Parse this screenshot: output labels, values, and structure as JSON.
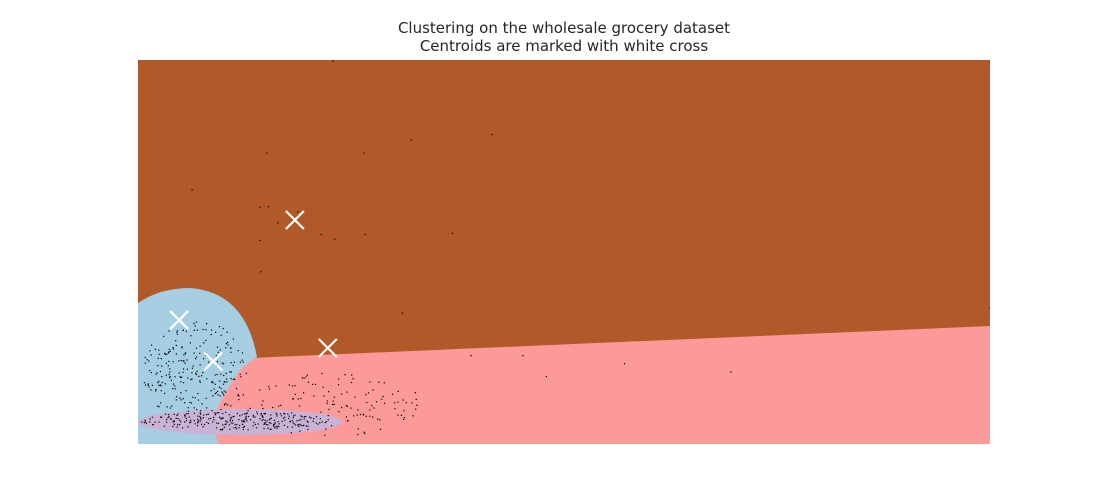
{
  "chart_data": {
    "type": "scatter",
    "title": "Clustering on the wholesale grocery dataset",
    "subtitle": "Centroids are marked with white cross",
    "xlabel": "",
    "ylabel": "",
    "xlim": [
      -0.45,
      1.0
    ],
    "ylim": [
      -0.36,
      0.3
    ],
    "grid": false,
    "axes_visible": false,
    "colors": {
      "region_brown": "#b15928",
      "region_blue": "#a6cee3",
      "region_pink": "#fb9a99",
      "region_lavender": "#cab2d6",
      "points": "#000000",
      "centroids": "#ffffff"
    },
    "centroids": [
      {
        "cluster": "brown",
        "x": -0.183,
        "y": 0.025
      },
      {
        "cluster": "blue",
        "x": -0.38,
        "y": -0.147
      },
      {
        "cluster": "pink",
        "x": -0.127,
        "y": -0.195
      },
      {
        "cluster": "lavender",
        "x": -0.322,
        "y": -0.218
      }
    ],
    "outlier_points": [
      [
        -0.118,
        0.298
      ],
      [
        -0.231,
        0.14
      ],
      [
        -0.065,
        0.14
      ],
      [
        0.015,
        0.162
      ],
      [
        0.152,
        0.172
      ],
      [
        -0.358,
        0.077
      ],
      [
        -0.228,
        0.048
      ],
      [
        -0.242,
        0.047
      ],
      [
        -0.178,
        0.039
      ],
      [
        -0.212,
        0.02
      ],
      [
        -0.138,
        0.0
      ],
      [
        -0.115,
        -0.008
      ],
      [
        -0.063,
        0.0
      ],
      [
        0.085,
        0.002
      ],
      [
        -0.242,
        -0.01
      ],
      [
        -0.241,
        -0.064
      ],
      [
        0.0,
        -0.135
      ],
      [
        0.205,
        -0.208
      ],
      [
        0.117,
        -0.208
      ],
      [
        0.378,
        -0.222
      ],
      [
        0.559,
        -0.236
      ],
      [
        0.245,
        -0.244
      ],
      [
        -0.04,
        -0.254
      ],
      [
        1.0,
        -0.127
      ]
    ]
  }
}
